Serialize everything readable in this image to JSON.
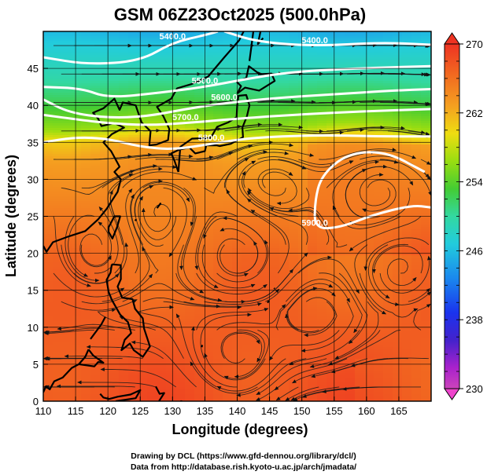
{
  "title": "GSM 06Z23Oct2025 (500.0hPa)",
  "colors": {
    "contour": "#ffffff",
    "coast": "#000000",
    "stream": "#1a1a1a"
  },
  "footer": {
    "line1": "Drawing by DCL (https://www.gfd-dennou.org/library/dcl/)",
    "line2": "Data from http://database.rish.kyoto-u.ac.jp/arch/jmadata/"
  },
  "chart_data": {
    "type": "heatmap",
    "title": "GSM 06Z23Oct2025 (500.0hPa)",
    "xlabel": "Longitude (degrees)",
    "ylabel": "Latitude  (degrees)",
    "xlim": [
      110,
      170
    ],
    "ylim": [
      0,
      50
    ],
    "x_ticks": [
      110,
      115,
      120,
      125,
      130,
      135,
      140,
      145,
      150,
      155,
      160,
      165
    ],
    "y_ticks": [
      0,
      5,
      10,
      15,
      20,
      25,
      30,
      35,
      40,
      45
    ],
    "grid": true,
    "colorbar": {
      "label_values": [
        230,
        238,
        246,
        254,
        262,
        270
      ],
      "vmin": 230,
      "vmax": 270
    },
    "temperature_profile": [
      {
        "lat": 0,
        "t": 268
      },
      {
        "lat": 12,
        "t": 267
      },
      {
        "lat": 20,
        "t": 266
      },
      {
        "lat": 26,
        "t": 264.5
      },
      {
        "lat": 32,
        "t": 263
      },
      {
        "lat": 35,
        "t": 261.5
      },
      {
        "lat": 38,
        "t": 257
      },
      {
        "lat": 41,
        "t": 253
      },
      {
        "lat": 44,
        "t": 249.5
      },
      {
        "lat": 47,
        "t": 247
      },
      {
        "lat": 50,
        "t": 244.5
      }
    ],
    "contours": [
      {
        "label": "5400.0",
        "points": [
          [
            110,
            46.5
          ],
          [
            117,
            45.5
          ],
          [
            125,
            46
          ],
          [
            130,
            48.5
          ],
          [
            135,
            49.5
          ],
          [
            137,
            50
          ]
        ]
      },
      {
        "label": "5400.0",
        "points": [
          [
            138,
            50
          ],
          [
            143,
            48.6
          ],
          [
            152,
            48
          ],
          [
            162,
            48.5
          ],
          [
            170,
            48.2
          ]
        ]
      },
      {
        "label": "5500.0",
        "points": [
          [
            110,
            42.5
          ],
          [
            116,
            42.3
          ],
          [
            120,
            41
          ],
          [
            128,
            41.7
          ],
          [
            135,
            42.5
          ],
          [
            141,
            43.5
          ],
          [
            148,
            44.5
          ],
          [
            158,
            45
          ],
          [
            170,
            45.3
          ]
        ]
      },
      {
        "label": "5600.0",
        "points": [
          [
            110,
            40.8
          ],
          [
            114,
            39
          ],
          [
            120,
            38.3
          ],
          [
            126,
            38.5
          ],
          [
            132,
            39.5
          ],
          [
            138,
            40.3
          ],
          [
            146,
            41
          ],
          [
            155,
            41.5
          ],
          [
            164,
            42
          ],
          [
            170,
            42.2
          ]
        ]
      },
      {
        "label": "5700.0",
        "points": [
          [
            110,
            38.7
          ],
          [
            116,
            38
          ],
          [
            120,
            37.6
          ],
          [
            126,
            37.3
          ],
          [
            132,
            37.6
          ],
          [
            140,
            38.2
          ],
          [
            150,
            38.8
          ],
          [
            160,
            39.2
          ],
          [
            170,
            39.5
          ]
        ]
      },
      {
        "label": "5800.0",
        "points": [
          [
            110,
            35
          ],
          [
            115,
            35.7
          ],
          [
            120,
            35.5
          ],
          [
            125,
            34.4
          ],
          [
            130,
            34
          ],
          [
            136,
            34.8
          ],
          [
            142,
            35.6
          ],
          [
            152,
            36
          ],
          [
            162,
            35.8
          ],
          [
            170,
            35.8
          ]
        ]
      },
      {
        "label": "5900.0",
        "points": [
          [
            169,
            31
          ],
          [
            163,
            33.8
          ],
          [
            157,
            33.5
          ],
          [
            153,
            30.5
          ],
          [
            152,
            27
          ],
          [
            152,
            23.3
          ],
          [
            156,
            23.5
          ],
          [
            161,
            25.2
          ],
          [
            167,
            26.5
          ],
          [
            170,
            26.2
          ]
        ]
      }
    ],
    "streamline_count": 190
  }
}
